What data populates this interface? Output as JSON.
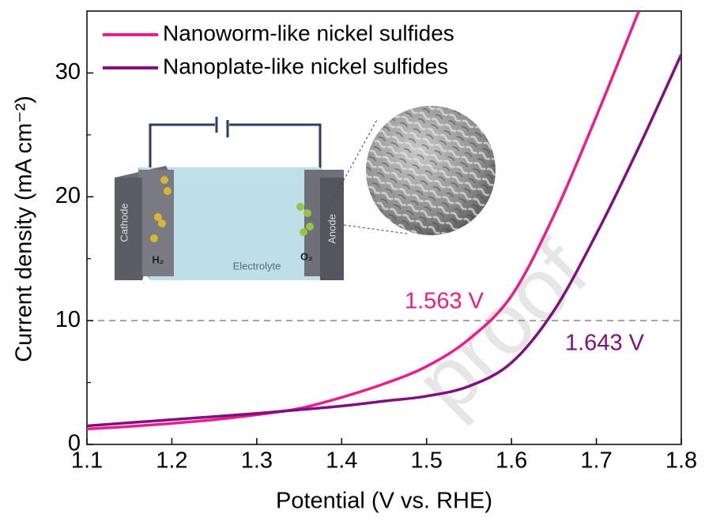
{
  "chart_data": {
    "type": "line",
    "xlabel": "Potential (V vs. RHE)",
    "ylabel": "Current density (mA cm⁻²)",
    "x": [
      1.1,
      1.15,
      1.2,
      1.25,
      1.3,
      1.35,
      1.4,
      1.45,
      1.5,
      1.55,
      1.6,
      1.65,
      1.7,
      1.75,
      1.8
    ],
    "series": [
      {
        "name": "Nanoworm-like nickel sulfides",
        "color": "#ec1c8c",
        "values": [
          1.25,
          1.45,
          1.7,
          2.0,
          2.4,
          2.9,
          3.8,
          4.9,
          6.3,
          8.5,
          12.0,
          18.5,
          26.5,
          35,
          null
        ]
      },
      {
        "name": "Nanoplate-like nickel sulfides",
        "color": "#800f7f",
        "values": [
          1.5,
          1.75,
          2.0,
          2.25,
          2.5,
          2.8,
          3.1,
          3.5,
          3.9,
          4.7,
          6.6,
          10.8,
          17.0,
          24.0,
          31.5
        ]
      }
    ],
    "xlim": [
      1.1,
      1.8
    ],
    "xticks": [
      1.1,
      1.2,
      1.3,
      1.4,
      1.5,
      1.6,
      1.7,
      1.8
    ],
    "ylim": [
      0,
      35
    ],
    "yticks": [
      0,
      10,
      20,
      30
    ],
    "yminorticks": [
      5,
      15,
      25
    ],
    "reference_line": {
      "y": 10,
      "color": "#888888"
    },
    "annotations": [
      {
        "text": "1.563 V",
        "x": 1.563,
        "color": "#ec1c8c"
      },
      {
        "text": "1.643 V",
        "x": 1.643,
        "color": "#800f7f"
      }
    ],
    "inset_labels": {
      "cathode": "Cathode",
      "anode": "Anode",
      "h2": "H₂",
      "o2": "O₂",
      "electrolyte": "Electrolyte"
    },
    "watermark": "proof",
    "legend": "top-left"
  }
}
